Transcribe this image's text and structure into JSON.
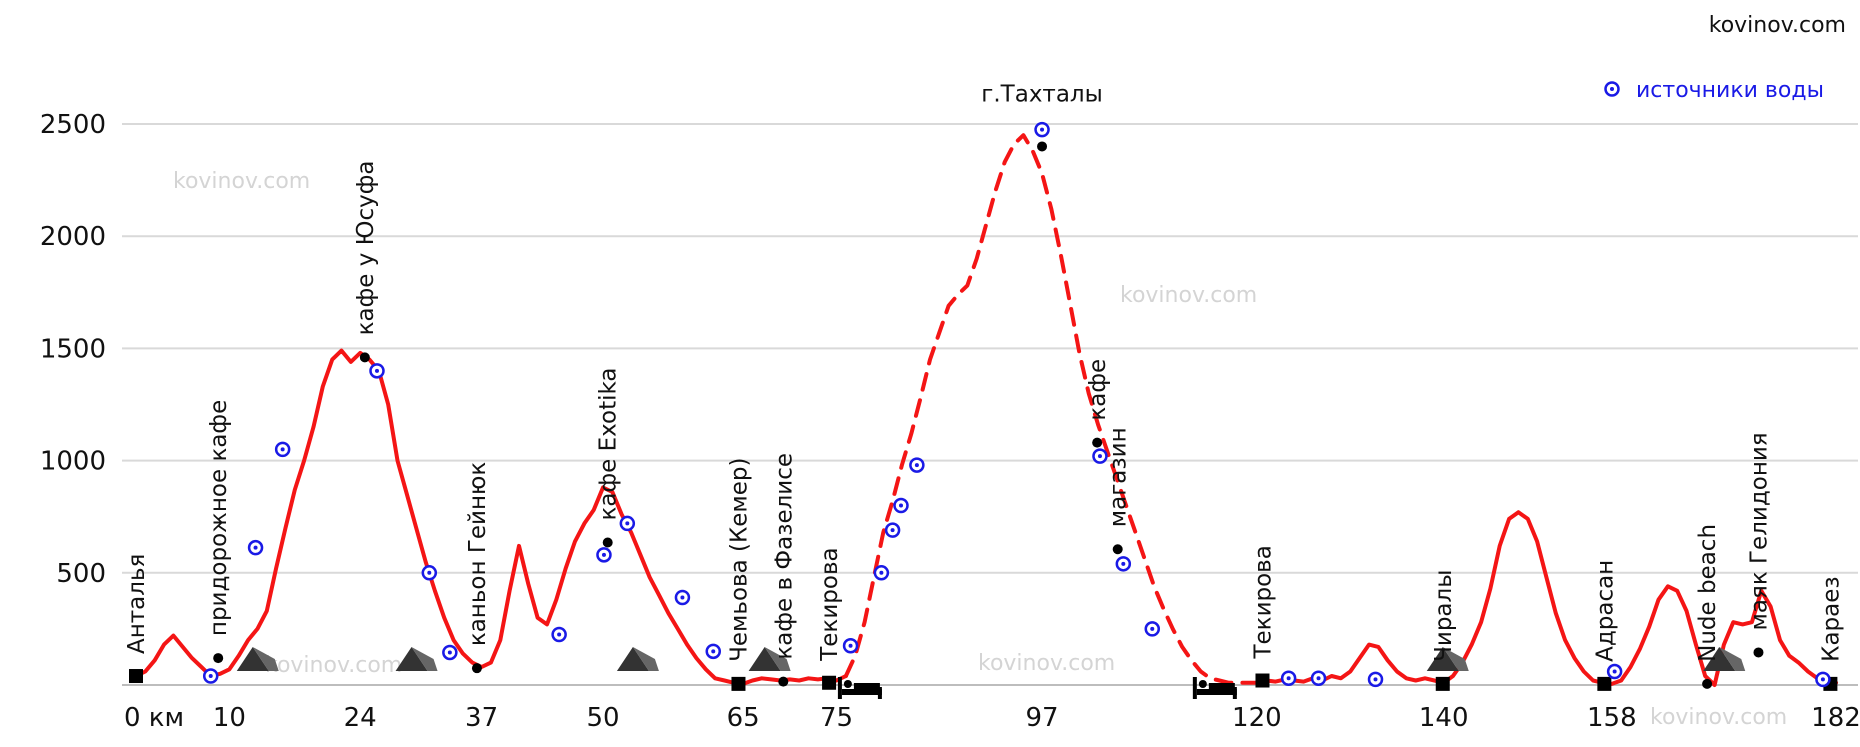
{
  "site_credit": "kovinov.com",
  "watermarks": [
    "kovinov.com",
    "kovinov.com",
    "kovinov.com",
    "kovinov.com",
    "kovinov.com",
    "kovinov.com"
  ],
  "colors": {
    "profile": "#f41515",
    "water": "#1a1ae6",
    "grid": "#d9d9d9",
    "marker": "#000000",
    "icon": "#333333"
  },
  "legend": {
    "water_label": "источники воды",
    "placement": "top-right"
  },
  "chart_data": {
    "type": "line",
    "title": "",
    "xlabel": "",
    "ylabel": "",
    "xlim": [
      0,
      182
    ],
    "ylim": [
      0,
      2500
    ],
    "grid": "horizontal",
    "x_tick_labels": [
      "0 км",
      "10",
      "24",
      "37",
      "50",
      "65",
      "75",
      "97",
      "120",
      "140",
      "158",
      "182"
    ],
    "x_tick_values": [
      0,
      10,
      24,
      37,
      50,
      65,
      75,
      97,
      120,
      140,
      158,
      182
    ],
    "y_ticks": [
      500,
      1000,
      1500,
      2000,
      2500
    ],
    "series": [
      {
        "style": "solid",
        "points": [
          [
            0,
            40
          ],
          [
            1,
            60
          ],
          [
            2,
            110
          ],
          [
            3,
            180
          ],
          [
            4,
            220
          ],
          [
            5,
            170
          ],
          [
            6,
            120
          ],
          [
            7,
            80
          ],
          [
            8,
            40
          ],
          [
            9,
            50
          ],
          [
            10,
            70
          ],
          [
            11,
            130
          ],
          [
            12,
            200
          ],
          [
            13,
            250
          ],
          [
            14,
            330
          ],
          [
            15,
            520
          ],
          [
            16,
            700
          ],
          [
            17,
            870
          ],
          [
            18,
            1000
          ],
          [
            19,
            1150
          ],
          [
            20,
            1330
          ],
          [
            21,
            1450
          ],
          [
            22,
            1490
          ],
          [
            23,
            1440
          ],
          [
            24,
            1480
          ],
          [
            25,
            1450
          ],
          [
            26,
            1400
          ],
          [
            27,
            1250
          ],
          [
            28,
            1000
          ],
          [
            29,
            850
          ],
          [
            30,
            700
          ],
          [
            31,
            550
          ],
          [
            32,
            420
          ],
          [
            33,
            300
          ],
          [
            34,
            200
          ],
          [
            35,
            140
          ],
          [
            36,
            100
          ],
          [
            37,
            80
          ],
          [
            38,
            100
          ],
          [
            39,
            200
          ],
          [
            40,
            420
          ],
          [
            41,
            620
          ],
          [
            42,
            450
          ],
          [
            43,
            300
          ],
          [
            44,
            270
          ],
          [
            45,
            380
          ],
          [
            46,
            520
          ],
          [
            47,
            640
          ],
          [
            48,
            720
          ],
          [
            49,
            780
          ],
          [
            50,
            880
          ],
          [
            51,
            860
          ],
          [
            52,
            760
          ],
          [
            53,
            680
          ],
          [
            54,
            580
          ],
          [
            55,
            480
          ],
          [
            56,
            400
          ],
          [
            57,
            320
          ],
          [
            58,
            250
          ],
          [
            59,
            180
          ],
          [
            60,
            120
          ],
          [
            61,
            70
          ],
          [
            62,
            30
          ],
          [
            63,
            20
          ],
          [
            64,
            10
          ],
          [
            65,
            5
          ],
          [
            66,
            20
          ],
          [
            67,
            30
          ],
          [
            68,
            25
          ],
          [
            69,
            20
          ],
          [
            70,
            25
          ],
          [
            71,
            20
          ],
          [
            72,
            30
          ],
          [
            73,
            25
          ],
          [
            74,
            30
          ],
          [
            75,
            20
          ],
          [
            76,
            40
          ]
        ]
      },
      {
        "style": "dashed",
        "points": [
          [
            76,
            40
          ],
          [
            77,
            130
          ],
          [
            78,
            280
          ],
          [
            79,
            480
          ],
          [
            80,
            680
          ],
          [
            81,
            820
          ],
          [
            82,
            980
          ],
          [
            83,
            1120
          ],
          [
            84,
            1280
          ],
          [
            85,
            1450
          ],
          [
            86,
            1570
          ],
          [
            87,
            1690
          ],
          [
            88,
            1740
          ],
          [
            89,
            1780
          ],
          [
            90,
            1900
          ],
          [
            91,
            2050
          ],
          [
            92,
            2200
          ],
          [
            93,
            2330
          ],
          [
            94,
            2410
          ],
          [
            95,
            2450
          ],
          [
            96,
            2380
          ],
          [
            97,
            2280
          ],
          [
            98,
            2120
          ],
          [
            99,
            1920
          ],
          [
            100,
            1700
          ],
          [
            101,
            1480
          ],
          [
            102,
            1300
          ],
          [
            103,
            1160
          ],
          [
            104,
            1040
          ],
          [
            105,
            920
          ],
          [
            106,
            800
          ],
          [
            107,
            680
          ],
          [
            108,
            560
          ],
          [
            109,
            440
          ],
          [
            110,
            340
          ],
          [
            111,
            250
          ],
          [
            112,
            170
          ],
          [
            113,
            110
          ],
          [
            114,
            60
          ],
          [
            115,
            30
          ],
          [
            116,
            20
          ],
          [
            117,
            10
          ],
          [
            118,
            10
          ],
          [
            120,
            10
          ]
        ]
      },
      {
        "style": "solid",
        "points": [
          [
            120,
            10
          ],
          [
            121,
            20
          ],
          [
            122,
            15
          ],
          [
            123,
            25
          ],
          [
            124,
            20
          ],
          [
            125,
            15
          ],
          [
            126,
            30
          ],
          [
            127,
            20
          ],
          [
            128,
            40
          ],
          [
            129,
            30
          ],
          [
            130,
            60
          ],
          [
            131,
            120
          ],
          [
            132,
            180
          ],
          [
            133,
            170
          ],
          [
            134,
            110
          ],
          [
            135,
            60
          ],
          [
            136,
            30
          ],
          [
            137,
            20
          ],
          [
            138,
            30
          ],
          [
            139,
            20
          ],
          [
            140,
            10
          ],
          [
            141,
            40
          ],
          [
            142,
            100
          ],
          [
            143,
            180
          ],
          [
            144,
            280
          ],
          [
            145,
            430
          ],
          [
            146,
            620
          ],
          [
            147,
            740
          ],
          [
            148,
            770
          ],
          [
            149,
            740
          ],
          [
            150,
            640
          ],
          [
            151,
            480
          ],
          [
            152,
            320
          ],
          [
            153,
            200
          ],
          [
            154,
            120
          ],
          [
            155,
            60
          ],
          [
            156,
            20
          ],
          [
            157,
            10
          ],
          [
            158,
            5
          ],
          [
            159,
            20
          ],
          [
            160,
            80
          ],
          [
            161,
            160
          ],
          [
            162,
            260
          ],
          [
            163,
            380
          ],
          [
            164,
            440
          ],
          [
            165,
            420
          ],
          [
            166,
            330
          ],
          [
            167,
            180
          ],
          [
            168,
            40
          ],
          [
            169,
            0
          ],
          [
            170,
            180
          ],
          [
            171,
            280
          ],
          [
            172,
            270
          ],
          [
            173,
            280
          ],
          [
            174,
            420
          ],
          [
            175,
            350
          ],
          [
            176,
            200
          ],
          [
            177,
            130
          ],
          [
            178,
            100
          ],
          [
            179,
            60
          ],
          [
            180,
            30
          ],
          [
            181,
            25
          ],
          [
            182,
            10
          ]
        ]
      }
    ],
    "water_sources": [
      [
        8,
        40
      ],
      [
        12.8,
        612
      ],
      [
        15.7,
        1050
      ],
      [
        25.8,
        1400
      ],
      [
        31.4,
        500
      ],
      [
        33.6,
        145
      ],
      [
        45.3,
        225
      ],
      [
        50.1,
        580
      ],
      [
        52.6,
        720
      ],
      [
        58.5,
        390
      ],
      [
        61.8,
        150
      ],
      [
        76.5,
        175
      ],
      [
        79.8,
        500
      ],
      [
        81,
        690
      ],
      [
        81.9,
        800
      ],
      [
        83.6,
        980
      ],
      [
        97,
        2475
      ],
      [
        103.2,
        1020
      ],
      [
        105.7,
        540
      ],
      [
        108.8,
        250
      ],
      [
        123.4,
        30
      ],
      [
        126.6,
        30
      ],
      [
        132.7,
        25
      ],
      [
        158.3,
        60
      ],
      [
        180.6,
        25
      ]
    ],
    "waypoints": [
      {
        "name": "Анталья",
        "x": 0,
        "y": 40,
        "marker": "square"
      },
      {
        "name": "придорожное кафе",
        "x": 8.8,
        "y": 120,
        "marker": "dot"
      },
      {
        "name": "кафе у Юсуфа",
        "x": 24.5,
        "y": 1460,
        "marker": "dot"
      },
      {
        "name": "каньон Гейнюк",
        "x": 36.5,
        "y": 75,
        "marker": "dot"
      },
      {
        "name": "кафе Exotika",
        "x": 50.5,
        "y": 635,
        "marker": "dot"
      },
      {
        "name": "Чемьова (Кемер)",
        "x": 64.5,
        "y": 5,
        "marker": "square"
      },
      {
        "name": "кафе в Фазелисе",
        "x": 69.3,
        "y": 15,
        "marker": "dot"
      },
      {
        "name": "Текирова",
        "x": 74.2,
        "y": 10,
        "marker": "square"
      },
      {
        "name": "г.Тахталы",
        "x": 97,
        "y": 2400,
        "marker": "dot"
      },
      {
        "name": "кафе",
        "x": 102.9,
        "y": 1080,
        "marker": "dot"
      },
      {
        "name": "магазин",
        "x": 105.1,
        "y": 605,
        "marker": "dot"
      },
      {
        "name": "Текирова",
        "x": 120.6,
        "y": 20,
        "marker": "square"
      },
      {
        "name": "Чиралы",
        "x": 139.9,
        "y": 5,
        "marker": "square"
      },
      {
        "name": "Адрасан",
        "x": 157.2,
        "y": 5,
        "marker": "square"
      },
      {
        "name": "Nude beach",
        "x": 168.2,
        "y": 5,
        "marker": "dot"
      },
      {
        "name": "маяк Гелидония",
        "x": 173.7,
        "y": 145,
        "marker": "dot"
      },
      {
        "name": "Караез",
        "x": 181.4,
        "y": 5,
        "marker": "square"
      }
    ],
    "camps": [
      12.5,
      29.5,
      53.2,
      67.3,
      139.9,
      169.5
    ],
    "lodgings": [
      77.5,
      115.5
    ]
  }
}
